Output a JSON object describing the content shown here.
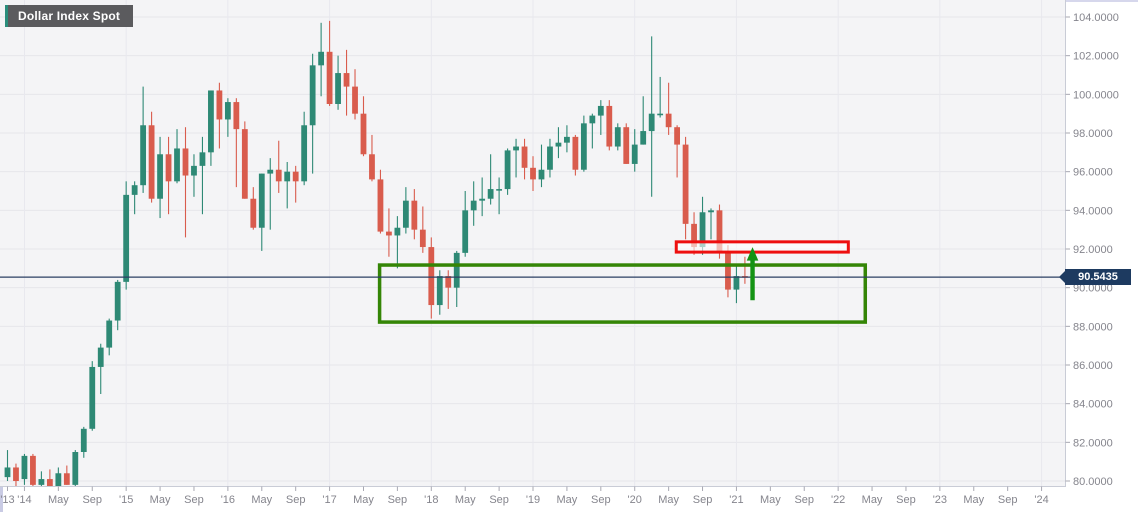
{
  "title_badge": {
    "label": "Dollar Index Spot",
    "accent_color": "#2a8d7b"
  },
  "price_scale": {
    "last_price_label": "90.5435",
    "tag_bg": "#1d3a60",
    "tick_labels": [
      "104.0000",
      "102.0000",
      "100.0000",
      "98.0000",
      "96.0000",
      "94.0000",
      "92.0000",
      "90.0000",
      "88.0000",
      "86.0000",
      "84.0000",
      "82.0000",
      "80.0000"
    ],
    "tick_values": [
      104,
      102,
      100,
      98,
      96,
      94,
      92,
      90,
      88,
      86,
      84,
      82,
      80
    ]
  },
  "time_scale": {
    "labels": [
      {
        "m": 0,
        "t": "'13"
      },
      {
        "m": 2,
        "t": "'14"
      },
      {
        "m": 6,
        "t": "May"
      },
      {
        "m": 10,
        "t": "Sep"
      },
      {
        "m": 14,
        "t": "'15"
      },
      {
        "m": 18,
        "t": "May"
      },
      {
        "m": 22,
        "t": "Sep"
      },
      {
        "m": 26,
        "t": "'16"
      },
      {
        "m": 30,
        "t": "May"
      },
      {
        "m": 34,
        "t": "Sep"
      },
      {
        "m": 38,
        "t": "'17"
      },
      {
        "m": 42,
        "t": "May"
      },
      {
        "m": 46,
        "t": "Sep"
      },
      {
        "m": 50,
        "t": "'18"
      },
      {
        "m": 54,
        "t": "May"
      },
      {
        "m": 58,
        "t": "Sep"
      },
      {
        "m": 62,
        "t": "'19"
      },
      {
        "m": 66,
        "t": "May"
      },
      {
        "m": 70,
        "t": "Sep"
      },
      {
        "m": 74,
        "t": "'20"
      },
      {
        "m": 78,
        "t": "May"
      },
      {
        "m": 82,
        "t": "Sep"
      },
      {
        "m": 86,
        "t": "'21"
      },
      {
        "m": 90,
        "t": "May"
      },
      {
        "m": 94,
        "t": "Sep"
      },
      {
        "m": 98,
        "t": "'22"
      },
      {
        "m": 102,
        "t": "May"
      },
      {
        "m": 106,
        "t": "Sep"
      },
      {
        "m": 110,
        "t": "'23"
      },
      {
        "m": 114,
        "t": "May"
      },
      {
        "m": 118,
        "t": "Sep"
      },
      {
        "m": 122,
        "t": "'24"
      }
    ]
  },
  "chart_data": {
    "type": "candlestick",
    "title": "Dollar Index Spot",
    "interval": "monthly",
    "x_start": "2013-11",
    "ylim": [
      80,
      104
    ],
    "grid": true,
    "colors": {
      "up": "#2e8975",
      "down": "#d95c4d",
      "background": "#f4f4f6"
    },
    "columns": [
      "month",
      "open",
      "high",
      "low",
      "close"
    ],
    "candles": [
      [
        "2013-11",
        80.2,
        81.6,
        80.0,
        80.7
      ],
      [
        "2013-12",
        80.7,
        80.9,
        79.7,
        80.0
      ],
      [
        "2014-01",
        80.1,
        81.4,
        79.8,
        81.3
      ],
      [
        "2014-02",
        81.3,
        81.4,
        79.7,
        79.8
      ],
      [
        "2014-03",
        79.8,
        80.5,
        79.4,
        80.1
      ],
      [
        "2014-04",
        80.1,
        80.6,
        79.5,
        79.5
      ],
      [
        "2014-05",
        79.5,
        80.7,
        79.3,
        80.4
      ],
      [
        "2014-06",
        80.4,
        80.8,
        79.8,
        79.8
      ],
      [
        "2014-07",
        79.8,
        81.6,
        79.7,
        81.5
      ],
      [
        "2014-08",
        81.5,
        82.8,
        81.2,
        82.7
      ],
      [
        "2014-09",
        82.7,
        86.2,
        82.6,
        85.9
      ],
      [
        "2014-10",
        85.9,
        87.1,
        84.5,
        86.9
      ],
      [
        "2014-11",
        86.9,
        88.4,
        86.5,
        88.3
      ],
      [
        "2014-12",
        88.3,
        90.4,
        87.8,
        90.3
      ],
      [
        "2015-01",
        90.3,
        95.5,
        89.9,
        94.8
      ],
      [
        "2015-02",
        94.8,
        95.5,
        93.8,
        95.3
      ],
      [
        "2015-03",
        95.3,
        100.4,
        94.9,
        98.4
      ],
      [
        "2015-04",
        98.4,
        99.1,
        94.4,
        94.6
      ],
      [
        "2015-05",
        94.6,
        97.8,
        93.6,
        96.9
      ],
      [
        "2015-06",
        96.9,
        97.8,
        93.8,
        95.5
      ],
      [
        "2015-07",
        95.5,
        98.2,
        95.4,
        97.2
      ],
      [
        "2015-08",
        97.2,
        98.3,
        92.6,
        95.8
      ],
      [
        "2015-09",
        95.8,
        96.9,
        94.7,
        96.3
      ],
      [
        "2015-10",
        96.3,
        97.8,
        93.8,
        97.0
      ],
      [
        "2015-11",
        97.0,
        100.2,
        96.3,
        100.2
      ],
      [
        "2015-12",
        100.2,
        100.6,
        97.2,
        98.7
      ],
      [
        "2016-01",
        98.7,
        99.8,
        97.8,
        99.6
      ],
      [
        "2016-02",
        99.6,
        99.8,
        95.2,
        98.2
      ],
      [
        "2016-03",
        98.2,
        98.6,
        94.6,
        94.6
      ],
      [
        "2016-04",
        94.6,
        95.2,
        93.0,
        93.1
      ],
      [
        "2016-05",
        93.1,
        95.9,
        91.9,
        95.9
      ],
      [
        "2016-06",
        95.9,
        96.7,
        93.0,
        96.1
      ],
      [
        "2016-07",
        96.1,
        97.6,
        94.9,
        95.5
      ],
      [
        "2016-08",
        95.5,
        96.5,
        94.1,
        96.0
      ],
      [
        "2016-09",
        96.0,
        96.3,
        94.4,
        95.5
      ],
      [
        "2016-10",
        95.5,
        99.1,
        95.3,
        98.4
      ],
      [
        "2016-11",
        98.4,
        102.1,
        95.9,
        101.5
      ],
      [
        "2016-12",
        101.5,
        103.7,
        99.9,
        102.2
      ],
      [
        "2017-01",
        102.2,
        103.8,
        99.4,
        99.5
      ],
      [
        "2017-02",
        99.5,
        102.0,
        99.2,
        101.1
      ],
      [
        "2017-03",
        101.1,
        102.3,
        98.9,
        100.4
      ],
      [
        "2017-04",
        100.4,
        101.3,
        98.7,
        99.0
      ],
      [
        "2017-05",
        99.0,
        99.9,
        96.8,
        96.9
      ],
      [
        "2017-06",
        96.9,
        97.9,
        95.5,
        95.6
      ],
      [
        "2017-07",
        95.6,
        96.1,
        92.8,
        92.9
      ],
      [
        "2017-08",
        92.9,
        94.1,
        91.6,
        92.7
      ],
      [
        "2017-09",
        92.7,
        93.7,
        91.0,
        93.1
      ],
      [
        "2017-10",
        93.1,
        95.2,
        92.8,
        94.5
      ],
      [
        "2017-11",
        94.5,
        95.1,
        92.5,
        93.0
      ],
      [
        "2017-12",
        93.0,
        94.2,
        91.8,
        92.1
      ],
      [
        "2018-01",
        92.1,
        92.6,
        88.4,
        89.1
      ],
      [
        "2018-02",
        89.1,
        90.9,
        88.6,
        90.6
      ],
      [
        "2018-03",
        90.6,
        90.9,
        88.9,
        90.0
      ],
      [
        "2018-04",
        90.0,
        91.9,
        89.0,
        91.8
      ],
      [
        "2018-05",
        91.8,
        95.0,
        91.6,
        94.0
      ],
      [
        "2018-06",
        94.0,
        95.5,
        93.2,
        94.5
      ],
      [
        "2018-07",
        94.5,
        95.7,
        93.7,
        94.6
      ],
      [
        "2018-08",
        94.6,
        96.9,
        94.3,
        95.1
      ],
      [
        "2018-09",
        95.1,
        95.7,
        93.8,
        95.1
      ],
      [
        "2018-10",
        95.1,
        97.2,
        94.8,
        97.1
      ],
      [
        "2018-11",
        97.1,
        97.7,
        95.7,
        97.3
      ],
      [
        "2018-12",
        97.3,
        97.7,
        95.6,
        96.2
      ],
      [
        "2019-01",
        96.2,
        96.8,
        95.0,
        95.6
      ],
      [
        "2019-02",
        95.6,
        97.4,
        95.2,
        96.1
      ],
      [
        "2019-03",
        96.1,
        97.7,
        95.7,
        97.3
      ],
      [
        "2019-04",
        97.3,
        98.3,
        96.7,
        97.5
      ],
      [
        "2019-05",
        97.5,
        98.4,
        97.0,
        97.8
      ],
      [
        "2019-06",
        97.8,
        97.9,
        95.8,
        96.1
      ],
      [
        "2019-07",
        96.1,
        98.9,
        96.0,
        98.5
      ],
      [
        "2019-08",
        98.5,
        99.0,
        97.2,
        98.9
      ],
      [
        "2019-09",
        98.9,
        99.7,
        97.9,
        99.4
      ],
      [
        "2019-10",
        99.4,
        99.7,
        97.1,
        97.3
      ],
      [
        "2019-11",
        97.3,
        98.5,
        97.1,
        98.3
      ],
      [
        "2019-12",
        98.3,
        98.5,
        96.4,
        96.4
      ],
      [
        "2020-01",
        96.4,
        98.2,
        96.0,
        97.4
      ],
      [
        "2020-02",
        97.4,
        99.9,
        97.4,
        98.1
      ],
      [
        "2020-03",
        98.1,
        103.0,
        94.7,
        99.0
      ],
      [
        "2020-04",
        99.0,
        100.9,
        98.8,
        99.0
      ],
      [
        "2020-05",
        99.0,
        100.6,
        97.9,
        98.3
      ],
      [
        "2020-06",
        98.3,
        98.4,
        95.7,
        97.4
      ],
      [
        "2020-07",
        97.4,
        97.8,
        92.5,
        93.3
      ],
      [
        "2020-08",
        93.3,
        93.9,
        91.7,
        92.1
      ],
      [
        "2020-09",
        92.1,
        94.7,
        91.7,
        93.9
      ],
      [
        "2020-10",
        93.9,
        94.1,
        92.5,
        94.0
      ],
      [
        "2020-11",
        94.0,
        94.3,
        91.5,
        91.9
      ],
      [
        "2020-12",
        91.9,
        92.2,
        89.5,
        89.9
      ],
      [
        "2021-01",
        89.9,
        91.1,
        89.2,
        90.6
      ],
      [
        "2021-02",
        90.6,
        91.6,
        90.2,
        90.5435
      ]
    ],
    "annotations": {
      "support_zone": {
        "from_month": 43.9,
        "to_month": 101.2,
        "top_price": 91.17,
        "bottom_price": 88.22,
        "color": "#348506"
      },
      "resistance_zone": {
        "from_month": 78.9,
        "to_month": 99.2,
        "top_price": 92.37,
        "bottom_price": 91.84,
        "color": "#ee0f0f"
      },
      "breakout_arrow": {
        "month": 87.9,
        "from_price": 89.35,
        "to_price": 92.1,
        "color": "#149314"
      },
      "current_price_line": {
        "price": 90.5435,
        "color": "#2b3f63"
      }
    }
  }
}
